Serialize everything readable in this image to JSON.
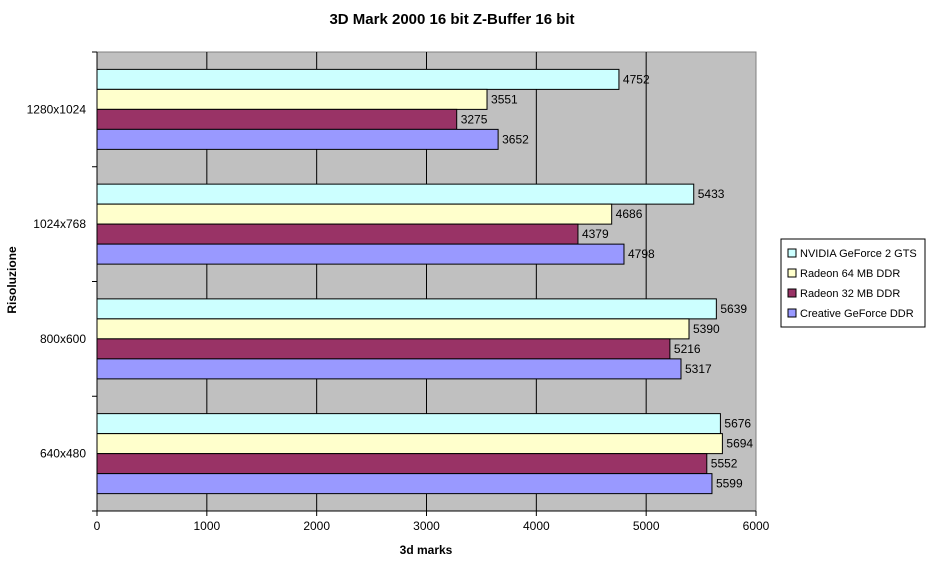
{
  "chart_data": {
    "type": "bar",
    "orientation": "horizontal",
    "title": "3D Mark 2000 16 bit Z-Buffer 16 bit",
    "xlabel": "3d marks",
    "ylabel": "Risoluzione",
    "categories": [
      "1280x1024",
      "1024x768",
      "800x600",
      "640x480"
    ],
    "series": [
      {
        "name": "NVIDIA GeForce 2 GTS",
        "color": "#ccffff",
        "values": [
          4752,
          5433,
          5639,
          5676
        ]
      },
      {
        "name": "Radeon 64 MB DDR",
        "color": "#ffffcc",
        "values": [
          3551,
          4686,
          5390,
          5694
        ]
      },
      {
        "name": "Radeon 32 MB DDR",
        "color": "#993366",
        "values": [
          3275,
          4379,
          5216,
          5552
        ]
      },
      {
        "name": "Creative GeForce DDR",
        "color": "#9999ff",
        "values": [
          3652,
          4798,
          5317,
          5599
        ]
      }
    ],
    "xlim": [
      0,
      6000
    ],
    "xticks": [
      0,
      1000,
      2000,
      3000,
      4000,
      5000,
      6000
    ],
    "grid": true,
    "plot_background": "#c0c0c0",
    "legend_position": "right"
  }
}
